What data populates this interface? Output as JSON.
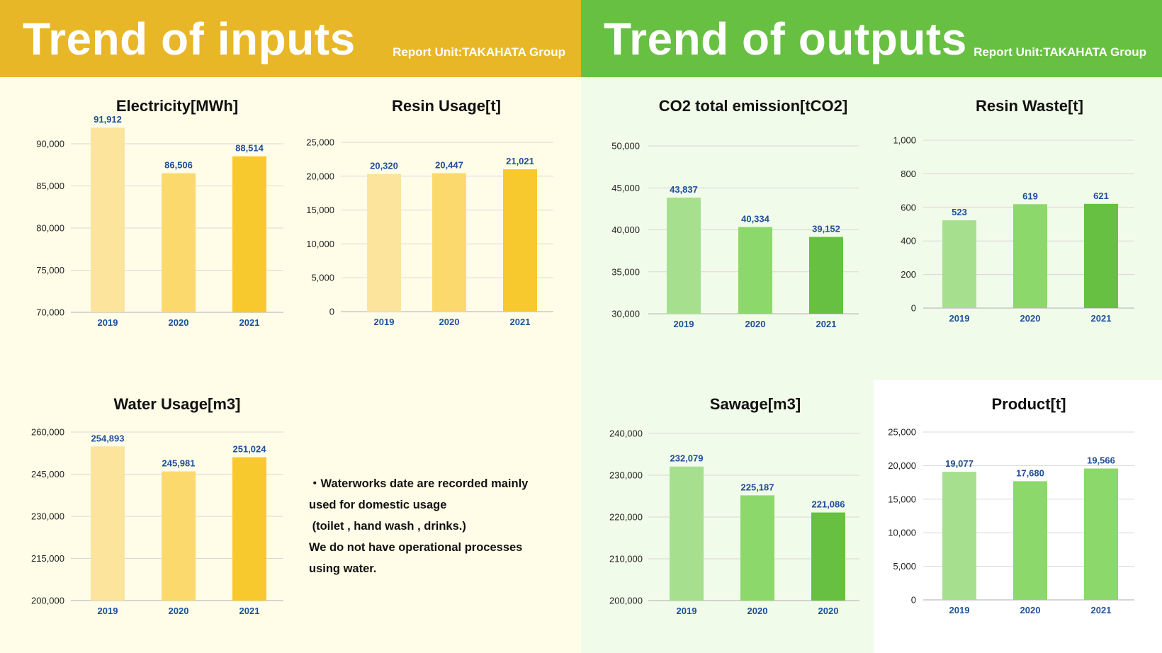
{
  "inputs_header": {
    "title": "Trend of inputs",
    "report_unit": "Report Unit:TAKAHATA Group"
  },
  "outputs_header": {
    "title": "Trend of outputs",
    "report_unit": "Report Unit:TAKAHATA Group"
  },
  "note": {
    "lines": [
      "・Waterworks date are recorded mainly",
      "used for domestic usage",
      " (toilet , hand wash , drinks.)",
      "We do not have operational processes",
      "using water."
    ]
  },
  "chart_data": [
    {
      "type": "bar",
      "title": "Electricity[MWh]",
      "categories": [
        "2019",
        "2020",
        "2021"
      ],
      "values": [
        91912,
        86506,
        88514
      ],
      "value_labels": [
        "91,912",
        "86,506",
        "88,514"
      ],
      "ylim": [
        70000,
        90000
      ],
      "yticks": [
        "70,000",
        "75,000",
        "80,000",
        "85,000",
        "90,000"
      ],
      "colors": [
        "#fce49c",
        "#fbd96d",
        "#f8c92f"
      ],
      "grid": true
    },
    {
      "type": "bar",
      "title": "Resin Usage[t]",
      "categories": [
        "2019",
        "2020",
        "2021"
      ],
      "values": [
        20320,
        20447,
        21021
      ],
      "value_labels": [
        "20,320",
        "20,447",
        "21,021"
      ],
      "ylim": [
        0,
        25000
      ],
      "yticks": [
        "0",
        "5,000",
        "10,000",
        "15,000",
        "20,000",
        "25,000"
      ],
      "colors": [
        "#fce49c",
        "#fbd96d",
        "#f8c92f"
      ],
      "grid": true
    },
    {
      "type": "bar",
      "title": "Water Usage[m3]",
      "categories": [
        "2019",
        "2020",
        "2021"
      ],
      "values": [
        254893,
        245981,
        251024
      ],
      "value_labels": [
        "254,893",
        "245,981",
        "251,024"
      ],
      "ylim": [
        200000,
        260000
      ],
      "yticks": [
        "200,000",
        "215,000",
        "230,000",
        "245,000",
        "260,000"
      ],
      "colors": [
        "#fce49c",
        "#fbd96d",
        "#f8c92f"
      ],
      "grid": true
    },
    {
      "type": "bar",
      "title": "CO2 total emission[tCO2]",
      "categories": [
        "2019",
        "2020",
        "2021"
      ],
      "values": [
        43837,
        40334,
        39152
      ],
      "value_labels": [
        "43,837",
        "40,334",
        "39,152"
      ],
      "ylim": [
        30000,
        50000
      ],
      "yticks": [
        "30,000",
        "35,000",
        "40,000",
        "45,000",
        "50,000"
      ],
      "colors": [
        "#a6e08f",
        "#8cd86a",
        "#67c042"
      ],
      "grid": true
    },
    {
      "type": "bar",
      "title": "Resin Waste[t]",
      "categories": [
        "2019",
        "2020",
        "2021"
      ],
      "values": [
        523,
        619,
        621
      ],
      "value_labels": [
        "523",
        "619",
        "621"
      ],
      "ylim": [
        0,
        1000
      ],
      "yticks": [
        "0",
        "200",
        "400",
        "600",
        "800",
        "1,000"
      ],
      "colors": [
        "#a6e08f",
        "#8cd86a",
        "#67c042"
      ],
      "grid": true
    },
    {
      "type": "bar",
      "title": "Sawage[m3]",
      "categories": [
        "2019",
        "2020",
        "2020"
      ],
      "values": [
        232079,
        225187,
        221086
      ],
      "value_labels": [
        "232,079",
        "225,187",
        "221,086"
      ],
      "ylim": [
        200000,
        240000
      ],
      "yticks": [
        "200,000",
        "210,000",
        "220,000",
        "230,000",
        "240,000"
      ],
      "colors": [
        "#a6e08f",
        "#8cd86a",
        "#67c042"
      ],
      "grid": true
    },
    {
      "type": "bar",
      "title": "Product[t]",
      "categories": [
        "2019",
        "2020",
        "2021"
      ],
      "values": [
        19077,
        17680,
        19566
      ],
      "value_labels": [
        "19,077",
        "17,680",
        "19,566"
      ],
      "ylim": [
        0,
        25000
      ],
      "yticks": [
        "0",
        "5,000",
        "10,000",
        "15,000",
        "20,000",
        "25,000"
      ],
      "colors": [
        "#a6e08f",
        "#8cd86a",
        "#8cd86a"
      ],
      "grid": true
    }
  ]
}
